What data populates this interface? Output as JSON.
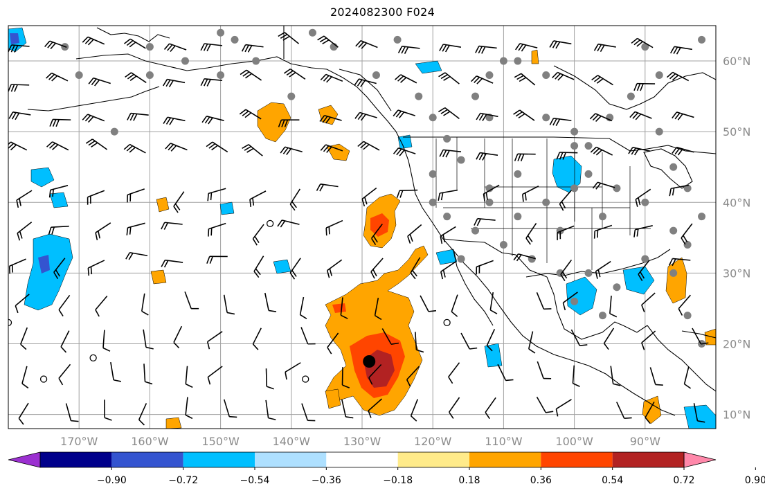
{
  "title": "2024082300 F024",
  "map": {
    "lon_labels": [
      "170°W",
      "160°W",
      "150°W",
      "140°W",
      "130°W",
      "120°W",
      "110°W",
      "100°W",
      "90°W"
    ],
    "lat_labels": [
      "60°N",
      "50°N",
      "40°N",
      "30°N",
      "20°N",
      "10°N"
    ],
    "storm_center": {
      "lon": -129,
      "lat": 17.5
    },
    "colors": {
      "land_outline": "#000000",
      "grid": "#a0a0a0",
      "stations": "#808080"
    }
  },
  "colorbar": {
    "colors": [
      "#9b30d0",
      "#00008b",
      "#3454d0",
      "#00bfff",
      "#aee0ff",
      "#ffffff",
      "#ffeb8a",
      "#ffa500",
      "#ff4500",
      "#b22222",
      "#ff88aa"
    ],
    "labels": [
      "−0.90",
      "−0.72",
      "−0.54",
      "−0.36",
      "−0.18",
      "0.18",
      "0.36",
      "0.54",
      "0.72",
      "0.90"
    ]
  }
}
